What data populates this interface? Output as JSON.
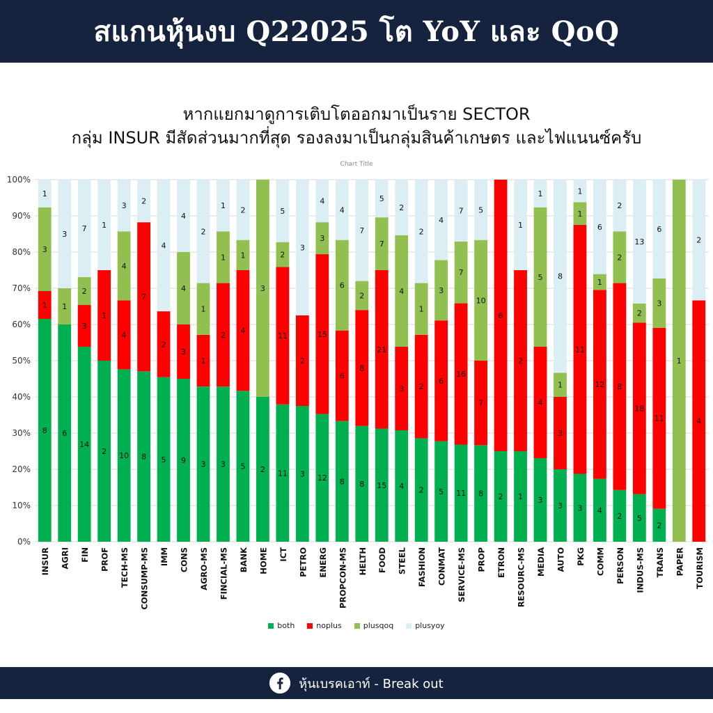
{
  "header": {
    "title": "สแกนหุ้นงบ Q22025 โต YoY และ QoQ"
  },
  "subtitle": {
    "line1": "หากแยกมาดูการเติบโตออกมาเป็นราย SECTOR",
    "line2": "กลุ่ม INSUR มีสัดส่วนมากที่สุด รองลงมาเป็นกลุ่มสินค้าเกษตร และไฟแนนซ์ครับ"
  },
  "chart_data": {
    "type": "bar",
    "stacked": "percent",
    "title": "Chart Title",
    "y_ticks": [
      "0%",
      "10%",
      "20%",
      "30%",
      "40%",
      "50%",
      "60%",
      "70%",
      "80%",
      "90%",
      "100%"
    ],
    "ylim": [
      0,
      100
    ],
    "legend_position": "bottom",
    "categories": [
      "INSUR",
      "AGRI",
      "FIN",
      "PROF",
      "TECH-MS",
      "CONSUMP-MS",
      "IMM",
      "CONS",
      "AGRO-MS",
      "FINCIAL-MS",
      "BANK",
      "HOME",
      "ICT",
      "PETRO",
      "ENERG",
      "PROPCON-MS",
      "HELTH",
      "FOOD",
      "STEEL",
      "FASHION",
      "CONMAT",
      "SERVICE-MS",
      "PROP",
      "ETRON",
      "RESOURC-MS",
      "MEDIA",
      "AUTO",
      "PKG",
      "COMM",
      "PERSON",
      "INDUS-MS",
      "TRANS",
      "PAPER",
      "TOURISM"
    ],
    "series": [
      {
        "name": "both",
        "color": "#00b050",
        "values": [
          8,
          6,
          14,
          2,
          10,
          8,
          5,
          9,
          3,
          3,
          5,
          2,
          11,
          3,
          12,
          8,
          8,
          15,
          4,
          2,
          5,
          11,
          8,
          2,
          1,
          3,
          3,
          3,
          4,
          2,
          5,
          2,
          0,
          0
        ]
      },
      {
        "name": "noplus",
        "color": "#ff0000",
        "values": [
          1,
          0,
          3,
          1,
          4,
          7,
          2,
          3,
          1,
          2,
          4,
          0,
          11,
          2,
          15,
          6,
          8,
          21,
          3,
          2,
          6,
          16,
          7,
          6,
          2,
          4,
          3,
          11,
          12,
          8,
          18,
          11,
          0,
          4
        ]
      },
      {
        "name": "plusqoq",
        "color": "#92c050",
        "values": [
          3,
          1,
          2,
          0,
          4,
          0,
          0,
          4,
          1,
          1,
          1,
          3,
          2,
          0,
          3,
          6,
          2,
          7,
          4,
          1,
          3,
          7,
          10,
          0,
          0,
          5,
          1,
          1,
          1,
          2,
          2,
          3,
          1,
          0
        ]
      },
      {
        "name": "plusyoy",
        "color": "#dbeef4",
        "values": [
          1,
          3,
          7,
          1,
          3,
          2,
          4,
          4,
          2,
          1,
          2,
          0,
          5,
          3,
          4,
          4,
          7,
          5,
          2,
          2,
          4,
          7,
          5,
          0,
          1,
          1,
          8,
          1,
          6,
          2,
          13,
          6,
          0,
          2
        ]
      }
    ]
  },
  "footer": {
    "text": "หุ้นเบรคเอาท์ - Break out",
    "icon": "facebook-icon"
  }
}
